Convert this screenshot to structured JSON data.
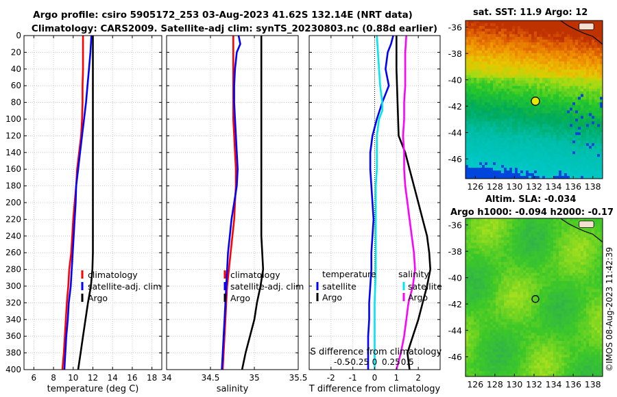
{
  "header": {
    "line1": "Argo profile: csiro 5905172_253 03-Aug-2023 41.62S 132.14E (NRT data)",
    "line2": "Climatology: CARS2009. Satellite-adj clim: synTS_20230803.nc (0.88d earlier)"
  },
  "side": {
    "sst_title": "sat. SST: 11.9 Argo: 12",
    "sla_title1": "Altim. SLA: -0.034",
    "sla_title2": "Argo h1000: -0.094 h2000: -0.17",
    "copyright": "©IMOS 08-Aug-2023 11:42:39"
  },
  "colors": {
    "climatology": "#ff0000",
    "satellite": "#0000ff",
    "argo": "#000000",
    "sal_satellite": "#00e5ee",
    "sal_argo": "#ff00ff",
    "marker": "#e8e800"
  },
  "chart_data": [
    {
      "type": "line",
      "id": "temperature",
      "xlabel": "temperature (deg C)",
      "ylabel": "",
      "xlim": [
        5,
        19
      ],
      "ylim": [
        0,
        400
      ],
      "xticks": [
        "6",
        "8",
        "10",
        "12",
        "14",
        "16",
        "18"
      ],
      "xtick_values": [
        6,
        8,
        10,
        12,
        14,
        16,
        18
      ],
      "yticks": [
        "0",
        "20",
        "40",
        "60",
        "80",
        "100",
        "120",
        "140",
        "160",
        "180",
        "200",
        "220",
        "240",
        "260",
        "280",
        "300",
        "320",
        "340",
        "360",
        "380",
        "400"
      ],
      "ytick_values": [
        0,
        20,
        40,
        60,
        80,
        100,
        120,
        140,
        160,
        180,
        200,
        220,
        240,
        260,
        280,
        300,
        320,
        340,
        360,
        380,
        400
      ],
      "legend": [
        "climatology",
        "satellite-adj. clim",
        "Argo"
      ],
      "series": [
        {
          "name": "climatology",
          "color": "#ff0000",
          "points": [
            [
              11.0,
              0
            ],
            [
              11.0,
              20
            ],
            [
              11.0,
              40
            ],
            [
              10.95,
              60
            ],
            [
              10.95,
              80
            ],
            [
              10.9,
              100
            ],
            [
              10.8,
              120
            ],
            [
              10.6,
              140
            ],
            [
              10.4,
              160
            ],
            [
              10.3,
              180
            ],
            [
              10.15,
              200
            ],
            [
              10.0,
              220
            ],
            [
              9.9,
              240
            ],
            [
              9.8,
              260
            ],
            [
              9.6,
              280
            ],
            [
              9.5,
              300
            ],
            [
              9.35,
              320
            ],
            [
              9.25,
              340
            ],
            [
              9.15,
              360
            ],
            [
              9.05,
              380
            ],
            [
              8.9,
              400
            ]
          ]
        },
        {
          "name": "satellite-adj. clim",
          "color": "#0000ff",
          "points": [
            [
              11.85,
              0
            ],
            [
              11.75,
              20
            ],
            [
              11.6,
              40
            ],
            [
              11.45,
              60
            ],
            [
              11.3,
              80
            ],
            [
              11.1,
              100
            ],
            [
              10.9,
              120
            ],
            [
              10.7,
              140
            ],
            [
              10.5,
              160
            ],
            [
              10.3,
              180
            ],
            [
              10.25,
              200
            ],
            [
              10.15,
              220
            ],
            [
              10.05,
              240
            ],
            [
              9.95,
              260
            ],
            [
              9.85,
              280
            ],
            [
              9.75,
              300
            ],
            [
              9.55,
              320
            ],
            [
              9.45,
              340
            ],
            [
              9.3,
              360
            ],
            [
              9.2,
              380
            ],
            [
              9.1,
              400
            ]
          ]
        },
        {
          "name": "Argo",
          "color": "#000000",
          "points": [
            [
              12.0,
              0
            ],
            [
              12.0,
              40
            ],
            [
              12.0,
              80
            ],
            [
              12.0,
              120
            ],
            [
              12.0,
              160
            ],
            [
              12.0,
              200
            ],
            [
              12.0,
              240
            ],
            [
              12.0,
              260
            ],
            [
              11.95,
              280
            ],
            [
              11.8,
              300
            ],
            [
              11.5,
              320
            ],
            [
              11.25,
              340
            ],
            [
              11.0,
              360
            ],
            [
              10.75,
              380
            ],
            [
              10.5,
              400
            ]
          ]
        }
      ]
    },
    {
      "type": "line",
      "id": "salinity",
      "xlabel": "salinity",
      "xlim": [
        34,
        35.5
      ],
      "ylim": [
        0,
        400
      ],
      "xticks": [
        "34",
        "34.5",
        "35",
        "35.5"
      ],
      "xtick_values": [
        34,
        34.5,
        35,
        35.5
      ],
      "legend": [
        "climatology",
        "satellite-adj. clim",
        "Argo"
      ],
      "series": [
        {
          "name": "climatology",
          "color": "#ff0000",
          "points": [
            [
              34.76,
              0
            ],
            [
              34.76,
              20
            ],
            [
              34.76,
              40
            ],
            [
              34.76,
              60
            ],
            [
              34.76,
              80
            ],
            [
              34.76,
              100
            ],
            [
              34.77,
              120
            ],
            [
              34.78,
              140
            ],
            [
              34.79,
              160
            ],
            [
              34.79,
              180
            ],
            [
              34.78,
              200
            ],
            [
              34.77,
              220
            ],
            [
              34.75,
              240
            ],
            [
              34.73,
              260
            ],
            [
              34.71,
              280
            ],
            [
              34.69,
              300
            ],
            [
              34.68,
              320
            ],
            [
              34.67,
              340
            ],
            [
              34.66,
              360
            ],
            [
              34.65,
              380
            ],
            [
              34.64,
              400
            ]
          ]
        },
        {
          "name": "satellite-adj. clim",
          "color": "#0000ff",
          "points": [
            [
              34.82,
              0
            ],
            [
              34.84,
              10
            ],
            [
              34.8,
              20
            ],
            [
              34.78,
              40
            ],
            [
              34.77,
              60
            ],
            [
              34.77,
              80
            ],
            [
              34.78,
              100
            ],
            [
              34.79,
              120
            ],
            [
              34.8,
              140
            ],
            [
              34.81,
              160
            ],
            [
              34.8,
              180
            ],
            [
              34.77,
              200
            ],
            [
              34.74,
              220
            ],
            [
              34.72,
              240
            ],
            [
              34.7,
              260
            ],
            [
              34.69,
              280
            ],
            [
              34.68,
              300
            ],
            [
              34.67,
              320
            ],
            [
              34.66,
              340
            ],
            [
              34.65,
              360
            ],
            [
              34.64,
              380
            ],
            [
              34.63,
              400
            ]
          ]
        },
        {
          "name": "Argo",
          "color": "#000000",
          "points": [
            [
              35.08,
              0
            ],
            [
              35.08,
              40
            ],
            [
              35.08,
              80
            ],
            [
              35.08,
              120
            ],
            [
              35.08,
              160
            ],
            [
              35.08,
              200
            ],
            [
              35.08,
              240
            ],
            [
              35.09,
              260
            ],
            [
              35.1,
              280
            ],
            [
              35.07,
              300
            ],
            [
              35.03,
              320
            ],
            [
              35.0,
              340
            ],
            [
              34.95,
              360
            ],
            [
              34.9,
              380
            ],
            [
              34.86,
              400
            ]
          ]
        }
      ]
    },
    {
      "type": "line",
      "id": "difference",
      "xlabel": "T difference from climatology",
      "top_label": "S difference from climatology",
      "xlim": [
        -3,
        3
      ],
      "ylim": [
        0,
        400
      ],
      "xticks": [
        "-2",
        "-1",
        "0",
        "1",
        "2"
      ],
      "xtick_values": [
        -2,
        -1,
        0,
        1,
        2
      ],
      "top_ticks": [
        "-0.5",
        "-0.25",
        "0",
        "0.25",
        "0.5"
      ],
      "top_tick_values": [
        -1.5,
        -0.75,
        0,
        0.75,
        1.5
      ],
      "legend_temperature": [
        "temperature",
        "satellite",
        "Argo"
      ],
      "legend_salinity": [
        "salinity",
        "satellite",
        "Argo"
      ],
      "series": [
        {
          "name": "temperature satellite",
          "color": "#0000ff",
          "points": [
            [
              0.85,
              0
            ],
            [
              0.75,
              10
            ],
            [
              0.6,
              20
            ],
            [
              0.5,
              40
            ],
            [
              0.65,
              60
            ],
            [
              0.35,
              80
            ],
            [
              0.1,
              100
            ],
            [
              -0.1,
              120
            ],
            [
              -0.2,
              140
            ],
            [
              -0.2,
              160
            ],
            [
              -0.15,
              180
            ],
            [
              -0.1,
              200
            ],
            [
              -0.05,
              220
            ],
            [
              -0.1,
              240
            ],
            [
              -0.15,
              260
            ],
            [
              -0.15,
              280
            ],
            [
              -0.2,
              300
            ],
            [
              -0.25,
              320
            ],
            [
              -0.25,
              340
            ],
            [
              -0.3,
              360
            ],
            [
              -0.3,
              380
            ],
            [
              -0.3,
              400
            ]
          ]
        },
        {
          "name": "temperature Argo",
          "color": "#000000",
          "points": [
            [
              1.0,
              0
            ],
            [
              1.0,
              40
            ],
            [
              1.05,
              80
            ],
            [
              1.1,
              120
            ],
            [
              1.4,
              140
            ],
            [
              1.6,
              160
            ],
            [
              1.8,
              180
            ],
            [
              2.0,
              200
            ],
            [
              2.2,
              220
            ],
            [
              2.4,
              240
            ],
            [
              2.5,
              260
            ],
            [
              2.55,
              280
            ],
            [
              2.4,
              300
            ],
            [
              2.2,
              320
            ],
            [
              2.0,
              340
            ],
            [
              1.75,
              360
            ],
            [
              1.5,
              380
            ],
            [
              1.6,
              400
            ]
          ]
        },
        {
          "name": "salinity satellite",
          "color": "#00e5ee",
          "points": [
            [
              0.1,
              0
            ],
            [
              0.15,
              20
            ],
            [
              0.2,
              40
            ],
            [
              0.25,
              60
            ],
            [
              0.35,
              80
            ],
            [
              0.35,
              90
            ],
            [
              0.2,
              100
            ],
            [
              0.1,
              120
            ],
            [
              0.1,
              140
            ],
            [
              0.1,
              160
            ],
            [
              0.05,
              180
            ],
            [
              0.05,
              200
            ],
            [
              0.05,
              240
            ],
            [
              0.05,
              280
            ],
            [
              0.0,
              320
            ],
            [
              0.0,
              360
            ],
            [
              0.0,
              400
            ]
          ]
        },
        {
          "name": "salinity Argo",
          "color": "#ff00ff",
          "points": [
            [
              1.45,
              0
            ],
            [
              1.4,
              20
            ],
            [
              1.4,
              40
            ],
            [
              1.4,
              60
            ],
            [
              1.35,
              80
            ],
            [
              1.35,
              100
            ],
            [
              1.3,
              120
            ],
            [
              1.35,
              140
            ],
            [
              1.35,
              160
            ],
            [
              1.4,
              180
            ],
            [
              1.5,
              200
            ],
            [
              1.6,
              220
            ],
            [
              1.7,
              240
            ],
            [
              1.8,
              260
            ],
            [
              1.85,
              280
            ],
            [
              1.75,
              300
            ],
            [
              1.55,
              320
            ],
            [
              1.45,
              340
            ],
            [
              1.35,
              360
            ],
            [
              1.2,
              380
            ],
            [
              1.0,
              400
            ]
          ]
        }
      ]
    },
    {
      "type": "heatmap",
      "id": "sst_map",
      "title": "sat. SST: 11.9 Argo: 12",
      "xlim": [
        125,
        139
      ],
      "ylim": [
        -47.5,
        -35.5
      ],
      "xticks": [
        "126",
        "128",
        "130",
        "132",
        "134",
        "136",
        "138"
      ],
      "xtick_values": [
        126,
        128,
        130,
        132,
        134,
        136,
        138
      ],
      "yticks": [
        "-36",
        "-38",
        "-40",
        "-42",
        "-44",
        "-46"
      ],
      "ytick_values": [
        -36,
        -38,
        -40,
        -42,
        -44,
        -46
      ],
      "marker": {
        "lon": 132.14,
        "lat": -41.62
      }
    },
    {
      "type": "heatmap",
      "id": "sla_map",
      "title": "Altim. SLA: -0.034",
      "xlim": [
        125,
        139
      ],
      "ylim": [
        -47.5,
        -35.5
      ],
      "xticks": [
        "126",
        "128",
        "130",
        "132",
        "134",
        "136",
        "138"
      ],
      "xtick_values": [
        126,
        128,
        130,
        132,
        134,
        136,
        138
      ],
      "yticks": [
        "-36",
        "-38",
        "-40",
        "-42",
        "-44",
        "-46"
      ],
      "ytick_values": [
        -36,
        -38,
        -40,
        -42,
        -44,
        -46
      ],
      "marker": {
        "lon": 132.14,
        "lat": -41.62
      }
    }
  ]
}
